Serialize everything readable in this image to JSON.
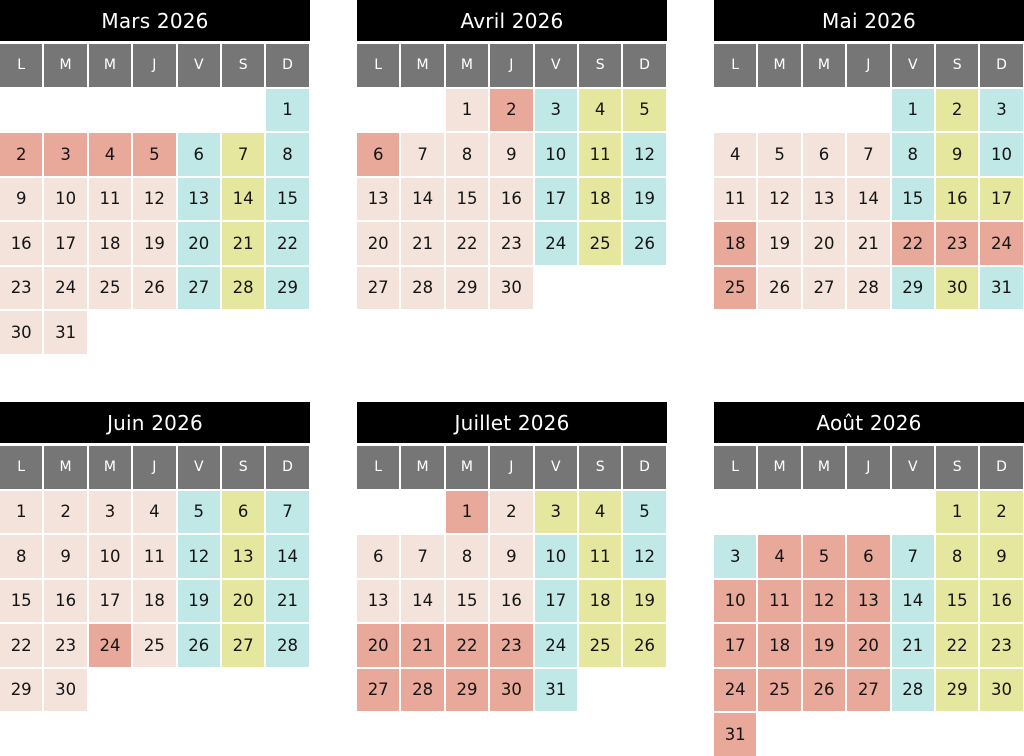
{
  "colors": {
    "title_bg": "#000000",
    "header_bg": "#767676",
    "weekday": "#f3e3db",
    "vacation": "#e8a89a",
    "friday": "#bfe8e6",
    "saturday": "#e6e79f",
    "sunday": "#bfe8e6"
  },
  "weekday_headers": [
    "L",
    "M",
    "M",
    "J",
    "V",
    "S",
    "D"
  ],
  "months": [
    {
      "title": "Mars 2026",
      "offset": 6,
      "days": [
        "1",
        "2",
        "3",
        "4",
        "5",
        "6",
        "7",
        "8",
        "9",
        "10",
        "11",
        "12",
        "13",
        "14",
        "15",
        "16",
        "17",
        "18",
        "19",
        "20",
        "21",
        "22",
        "23",
        "24",
        "25",
        "26",
        "27",
        "28",
        "29",
        "30",
        "31"
      ],
      "colors": [
        "s",
        "v",
        "v",
        "v",
        "v",
        "f",
        "a",
        "s",
        "w",
        "w",
        "w",
        "w",
        "f",
        "a",
        "s",
        "w",
        "w",
        "w",
        "w",
        "f",
        "a",
        "s",
        "w",
        "w",
        "w",
        "w",
        "f",
        "a",
        "s",
        "w",
        "w"
      ]
    },
    {
      "title": "Avril 2026",
      "offset": 2,
      "days": [
        "1",
        "2",
        "3",
        "4",
        "5",
        "6",
        "7",
        "8",
        "9",
        "10",
        "11",
        "12",
        "13",
        "14",
        "15",
        "16",
        "17",
        "18",
        "19",
        "20",
        "21",
        "22",
        "23",
        "24",
        "25",
        "26",
        "27",
        "28",
        "29",
        "30"
      ],
      "colors": [
        "w",
        "v",
        "f",
        "a",
        "a",
        "v",
        "w",
        "w",
        "w",
        "f",
        "a",
        "s",
        "w",
        "w",
        "w",
        "w",
        "f",
        "a",
        "s",
        "w",
        "w",
        "w",
        "w",
        "f",
        "a",
        "s",
        "w",
        "w",
        "w",
        "w"
      ]
    },
    {
      "title": "Mai 2026",
      "offset": 4,
      "days": [
        "1",
        "2",
        "3",
        "4",
        "5",
        "6",
        "7",
        "8",
        "9",
        "10",
        "11",
        "12",
        "13",
        "14",
        "15",
        "16",
        "17",
        "18",
        "19",
        "20",
        "21",
        "22",
        "23",
        "24",
        "25",
        "26",
        "27",
        "28",
        "29",
        "30",
        "31"
      ],
      "colors": [
        "f",
        "a",
        "s",
        "w",
        "w",
        "w",
        "w",
        "f",
        "a",
        "s",
        "w",
        "w",
        "w",
        "w",
        "f",
        "a",
        "a",
        "v",
        "w",
        "w",
        "w",
        "v",
        "v",
        "v",
        "v",
        "w",
        "w",
        "w",
        "f",
        "a",
        "s"
      ]
    },
    {
      "title": "Juin 2026",
      "offset": 0,
      "days": [
        "1",
        "2",
        "3",
        "4",
        "5",
        "6",
        "7",
        "8",
        "9",
        "10",
        "11",
        "12",
        "13",
        "14",
        "15",
        "16",
        "17",
        "18",
        "19",
        "20",
        "21",
        "22",
        "23",
        "24",
        "25",
        "26",
        "27",
        "28",
        "29",
        "30"
      ],
      "colors": [
        "w",
        "w",
        "w",
        "w",
        "f",
        "a",
        "s",
        "w",
        "w",
        "w",
        "w",
        "f",
        "a",
        "s",
        "w",
        "w",
        "w",
        "w",
        "f",
        "a",
        "s",
        "w",
        "w",
        "v",
        "w",
        "f",
        "a",
        "s",
        "w",
        "w"
      ]
    },
    {
      "title": "Juillet 2026",
      "offset": 2,
      "days": [
        "1",
        "2",
        "3",
        "4",
        "5",
        "6",
        "7",
        "8",
        "9",
        "10",
        "11",
        "12",
        "13",
        "14",
        "15",
        "16",
        "17",
        "18",
        "19",
        "20",
        "21",
        "22",
        "23",
        "24",
        "25",
        "26",
        "27",
        "28",
        "29",
        "30",
        "31"
      ],
      "colors": [
        "v",
        "w",
        "a",
        "a",
        "s",
        "w",
        "w",
        "w",
        "w",
        "f",
        "a",
        "s",
        "w",
        "w",
        "w",
        "w",
        "f",
        "a",
        "a",
        "v",
        "v",
        "v",
        "v",
        "f",
        "a",
        "a",
        "v",
        "v",
        "v",
        "v",
        "f"
      ]
    },
    {
      "title": "Août 2026",
      "offset": 5,
      "days": [
        "1",
        "2",
        "3",
        "4",
        "5",
        "6",
        "7",
        "8",
        "9",
        "10",
        "11",
        "12",
        "13",
        "14",
        "15",
        "16",
        "17",
        "18",
        "19",
        "20",
        "21",
        "22",
        "23",
        "24",
        "25",
        "26",
        "27",
        "28",
        "29",
        "30",
        "31"
      ],
      "colors": [
        "a",
        "a",
        "s",
        "v",
        "v",
        "v",
        "f",
        "a",
        "a",
        "v",
        "v",
        "v",
        "v",
        "f",
        "a",
        "a",
        "v",
        "v",
        "v",
        "v",
        "f",
        "a",
        "a",
        "v",
        "v",
        "v",
        "v",
        "f",
        "a",
        "a",
        "v"
      ]
    }
  ]
}
